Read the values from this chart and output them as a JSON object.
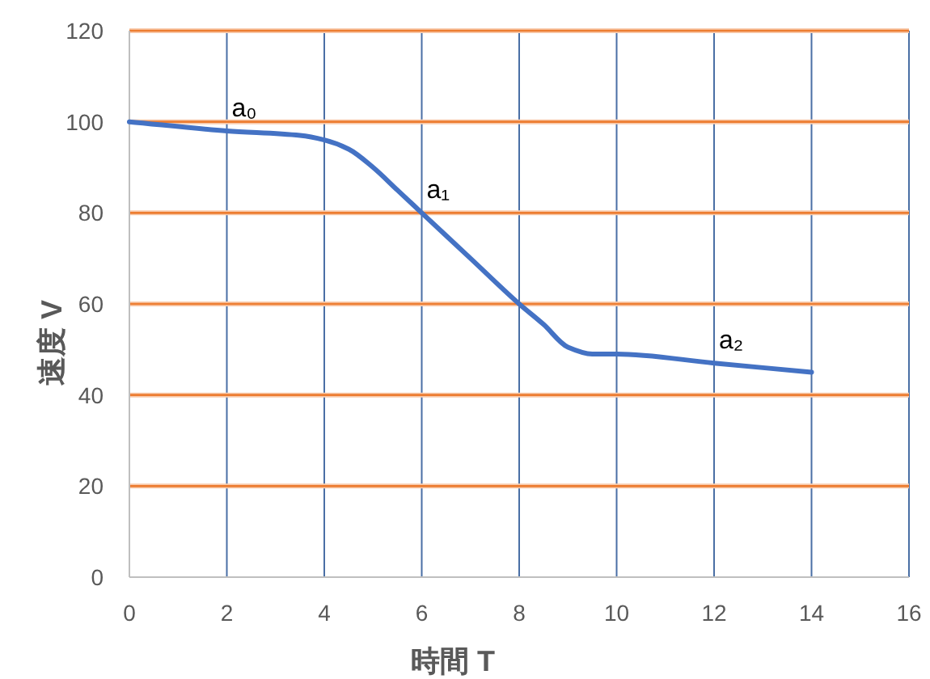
{
  "chart_data": {
    "type": "line",
    "xlabel": "時間 T",
    "ylabel": "速度 V",
    "x": [
      0,
      2,
      3.5,
      4,
      4.5,
      5,
      5.5,
      6,
      7,
      8,
      8.5,
      9,
      9.5,
      10,
      12,
      14
    ],
    "series": [
      {
        "color": "#4472c4",
        "values": [
          100,
          98,
          97,
          96,
          94,
          90,
          85,
          80,
          70,
          60,
          55.5,
          50.5,
          49,
          49,
          47,
          45
        ]
      }
    ],
    "xlim": [
      0,
      16
    ],
    "ylim": [
      0,
      120
    ],
    "xticks": [
      0,
      2,
      4,
      6,
      8,
      10,
      12,
      14,
      16
    ],
    "yticks": [
      0,
      20,
      40,
      60,
      80,
      100,
      120
    ],
    "grid": true,
    "marker": "none",
    "line_style": "solid",
    "annotations": [
      {
        "text": "a₀",
        "x": 2,
        "y": 98
      },
      {
        "text": "a₁",
        "x": 6,
        "y": 80
      },
      {
        "text": "a₂",
        "x": 12,
        "y": 47
      }
    ]
  }
}
